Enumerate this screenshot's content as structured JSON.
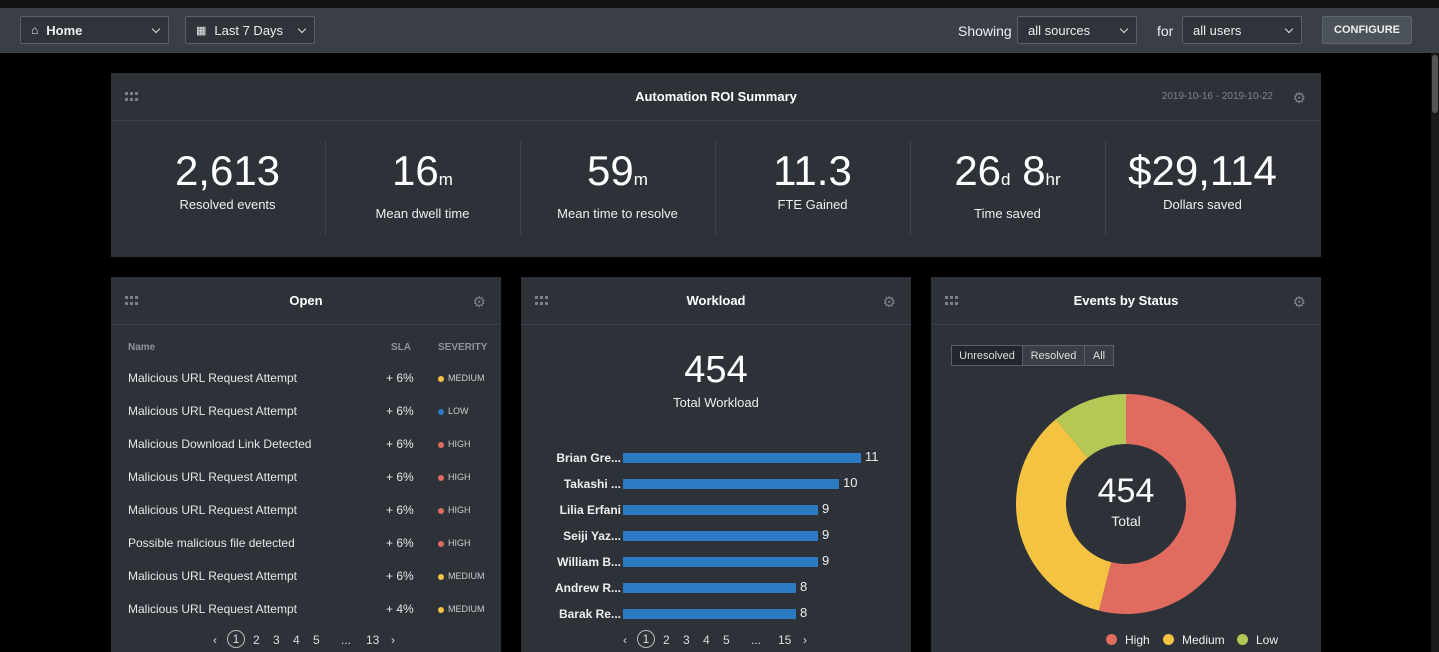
{
  "toolbar": {
    "home_label": "Home",
    "range_label": "Last 7 Days",
    "showing_label": "Showing",
    "sources_value": "all sources",
    "for_label": "for",
    "users_value": "all users",
    "configure_label": "CONFIGURE"
  },
  "roi": {
    "title": "Automation ROI Summary",
    "date_range": "2019-10-16 - 2019-10-22",
    "stats": [
      {
        "value": "2,613",
        "unit": "",
        "label": "Resolved events"
      },
      {
        "value": "16",
        "unit": "m",
        "label": "Mean dwell time"
      },
      {
        "value": "59",
        "unit": "m",
        "label": "Mean time to resolve"
      },
      {
        "value": "11.3",
        "unit": "",
        "label": "FTE Gained"
      },
      {
        "value": "26",
        "unit": "d",
        "value2": "8",
        "unit2": "hr",
        "label": "Time saved"
      },
      {
        "value": "$29,114",
        "unit": "",
        "label": "Dollars saved"
      }
    ]
  },
  "open": {
    "title": "Open",
    "col_name": "Name",
    "col_sla": "SLA",
    "col_severity": "SEVERITY",
    "rows": [
      {
        "name": "Malicious URL Request Attempt",
        "sla": "+ 6%",
        "severity": "MEDIUM",
        "color": "#f5c342"
      },
      {
        "name": "Malicious URL Request Attempt",
        "sla": "+ 6%",
        "severity": "LOW",
        "color": "#2b7ac2"
      },
      {
        "name": "Malicious Download Link Detected",
        "sla": "+ 6%",
        "severity": "HIGH",
        "color": "#e06b5e"
      },
      {
        "name": "Malicious URL Request Attempt",
        "sla": "+ 6%",
        "severity": "HIGH",
        "color": "#e06b5e"
      },
      {
        "name": "Malicious URL Request Attempt",
        "sla": "+ 6%",
        "severity": "HIGH",
        "color": "#e06b5e"
      },
      {
        "name": "Possible malicious file detected",
        "sla": "+ 6%",
        "severity": "HIGH",
        "color": "#e06b5e"
      },
      {
        "name": "Malicious URL Request Attempt",
        "sla": "+ 6%",
        "severity": "MEDIUM",
        "color": "#f5c342"
      },
      {
        "name": "Malicious URL Request Attempt",
        "sla": "+ 4%",
        "severity": "MEDIUM",
        "color": "#f5c342"
      }
    ],
    "pager": {
      "prev": "‹",
      "pages": [
        "1",
        "2",
        "3",
        "4",
        "5"
      ],
      "ellipsis": "...",
      "last": "13",
      "next": "›"
    }
  },
  "workload": {
    "title": "Workload",
    "total": "454",
    "total_label": "Total Workload",
    "people": [
      {
        "name": "Brian Gre...",
        "value": 11
      },
      {
        "name": "Takashi ...",
        "value": 10
      },
      {
        "name": "Lilia Erfani",
        "value": 9
      },
      {
        "name": "Seiji Yaz...",
        "value": 9
      },
      {
        "name": "William B...",
        "value": 9
      },
      {
        "name": "Andrew R...",
        "value": 8
      },
      {
        "name": "Barak Re...",
        "value": 8
      }
    ],
    "pager": {
      "prev": "‹",
      "pages": [
        "1",
        "2",
        "3",
        "4",
        "5"
      ],
      "ellipsis": "...",
      "last": "15",
      "next": "›"
    }
  },
  "status": {
    "title": "Events by Status",
    "tabs": [
      "Unresolved",
      "Resolved",
      "All"
    ],
    "total": "454",
    "total_label": "Total",
    "legend": [
      {
        "label": "High",
        "color": "#e06b5e"
      },
      {
        "label": "Medium",
        "color": "#f5c342"
      },
      {
        "label": "Low",
        "color": "#b5c856"
      }
    ]
  },
  "chart_data": {
    "type": "pie",
    "categories": [
      "High",
      "Medium",
      "Low"
    ],
    "values": [
      245,
      159,
      50
    ],
    "colors": [
      "#e06b5e",
      "#f5c342",
      "#b5c856"
    ]
  }
}
